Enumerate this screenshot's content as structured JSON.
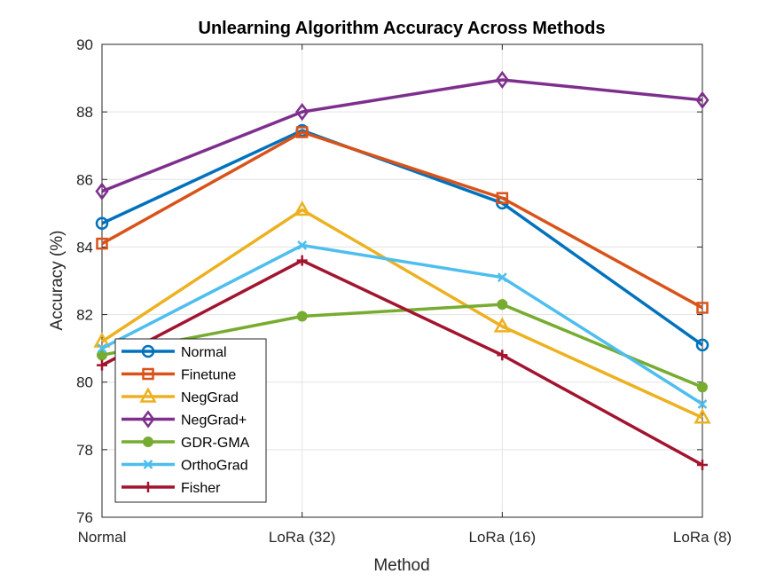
{
  "chart_data": {
    "type": "line",
    "title": "Unlearning Algorithm Accuracy Across Methods",
    "xlabel": "Method",
    "ylabel": "Accuracy (%)",
    "categories": [
      "Normal",
      "LoRa (32)",
      "LoRa (16)",
      "LoRa (8)"
    ],
    "ylim": [
      76,
      90
    ],
    "yticks": [
      76,
      78,
      80,
      82,
      84,
      86,
      88,
      90
    ],
    "grid": true,
    "legend_position": "bottom-left",
    "series": [
      {
        "name": "Normal",
        "values": [
          84.7,
          87.45,
          85.3,
          81.1
        ],
        "color": "#0072BD",
        "marker": "circle"
      },
      {
        "name": "Finetune",
        "values": [
          84.1,
          87.4,
          85.45,
          82.2
        ],
        "color": "#D95319",
        "marker": "square"
      },
      {
        "name": "NegGrad",
        "values": [
          81.2,
          85.1,
          81.65,
          78.95
        ],
        "color": "#EDB120",
        "marker": "triangle"
      },
      {
        "name": "NegGrad+",
        "values": [
          85.65,
          88.0,
          88.95,
          88.35
        ],
        "color": "#7E2F8E",
        "marker": "diamond"
      },
      {
        "name": "GDR-GMA",
        "values": [
          80.8,
          81.95,
          82.3,
          79.85
        ],
        "color": "#77AC30",
        "marker": "dot"
      },
      {
        "name": "OrthoGrad",
        "values": [
          81.0,
          84.05,
          83.1,
          79.35
        ],
        "color": "#4DBEEE",
        "marker": "x"
      },
      {
        "name": "Fisher",
        "values": [
          80.5,
          83.6,
          80.8,
          77.55
        ],
        "color": "#A2142F",
        "marker": "plus"
      }
    ]
  }
}
